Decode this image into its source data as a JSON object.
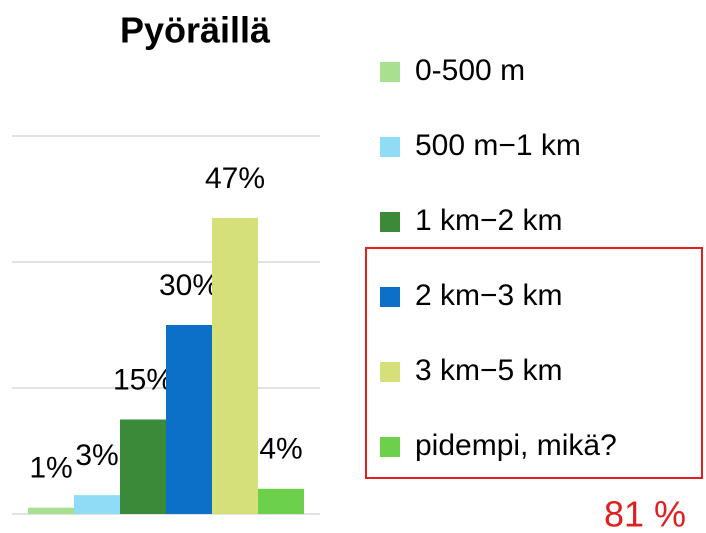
{
  "chart_data": {
    "type": "bar",
    "title": "Pyöräillä",
    "categories": [
      null
    ],
    "series": [
      {
        "name": "0-500 m",
        "color": "#a9e08f",
        "values": [
          1
        ],
        "value_labels": [
          "1%"
        ]
      },
      {
        "name": "500 m−1 km",
        "color": "#8fdcf7",
        "values": [
          3
        ],
        "value_labels": [
          "3%"
        ]
      },
      {
        "name": "1 km−2 km",
        "color": "#3a8a3a",
        "values": [
          15
        ],
        "value_labels": [
          "15%"
        ]
      },
      {
        "name": "2 km−3 km",
        "color": "#0c6fc8",
        "values": [
          30
        ],
        "value_labels": [
          "30%"
        ]
      },
      {
        "name": "3 km−5 km",
        "color": "#d6e07a",
        "values": [
          47
        ],
        "value_labels": [
          "47%"
        ]
      },
      {
        "name": "pidempi, mikä?",
        "color": "#6cd04a",
        "values": [
          4
        ],
        "value_labels": [
          "4%"
        ]
      }
    ],
    "ylim": [
      0,
      60
    ],
    "yticks": [
      0,
      20,
      40,
      60
    ],
    "grid": true,
    "legend": "right",
    "annotations": [
      "81 %"
    ]
  }
}
